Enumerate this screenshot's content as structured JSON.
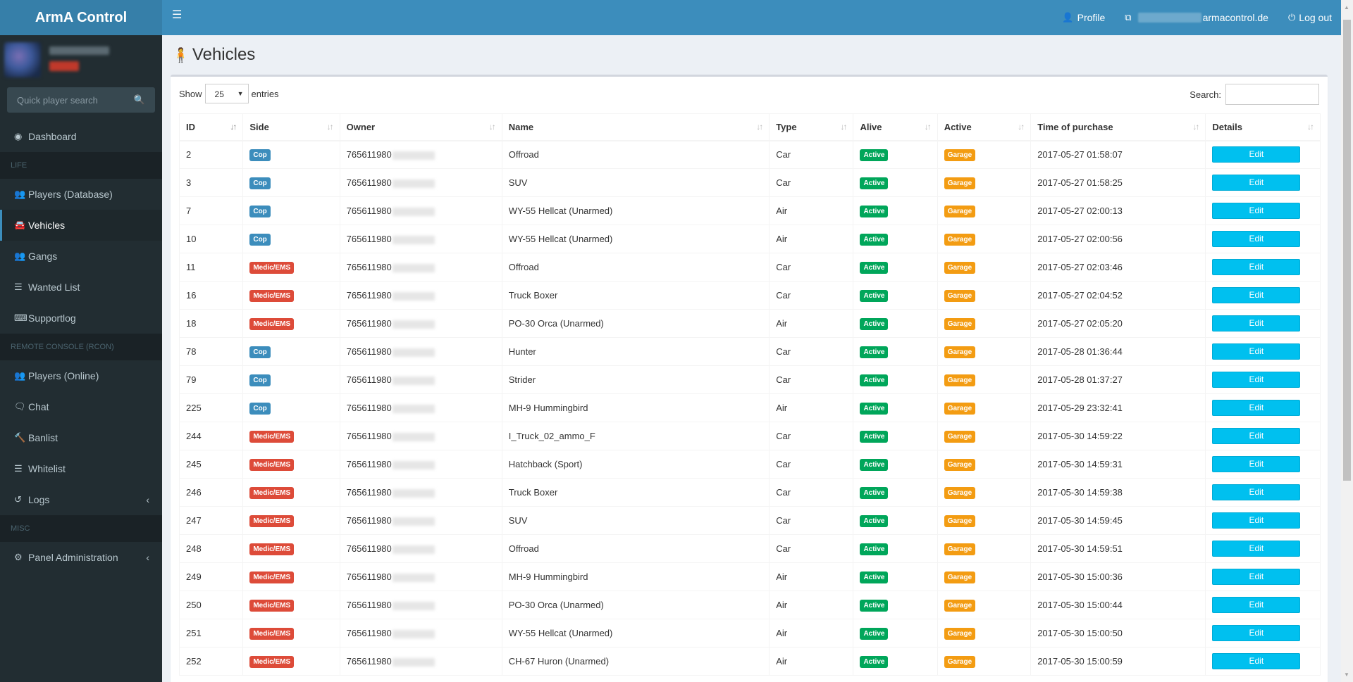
{
  "app": {
    "title": "ArmA Control"
  },
  "header": {
    "profile_label": "Profile",
    "server_suffix": "armacontrol.de",
    "logout_label": "Log out"
  },
  "sidebar": {
    "search_placeholder": "Quick player search",
    "dashboard": "Dashboard",
    "sections": {
      "life": "LIFE",
      "rcon": "REMOTE CONSOLE (RCON)",
      "misc": "MISC"
    },
    "life_items": [
      "Players (Database)",
      "Vehicles",
      "Gangs",
      "Wanted List",
      "Supportlog"
    ],
    "rcon_items": [
      "Players (Online)",
      "Chat",
      "Banlist",
      "Whitelist",
      "Logs"
    ],
    "misc_items": [
      "Panel Administration"
    ]
  },
  "page": {
    "title": "Vehicles",
    "show_label": "Show",
    "entries_label": "entries",
    "entries_value": "25",
    "search_label": "Search:"
  },
  "table": {
    "columns": [
      "ID",
      "Side",
      "Owner",
      "Name",
      "Type",
      "Alive",
      "Active",
      "Time of purchase",
      "Details"
    ],
    "edit_label": "Edit",
    "rows": [
      {
        "id": "2",
        "side": "Cop",
        "owner": "765611980",
        "name": "Offroad",
        "type": "Car",
        "alive": "Active",
        "active": "Garage",
        "time": "2017-05-27 01:58:07"
      },
      {
        "id": "3",
        "side": "Cop",
        "owner": "765611980",
        "name": "SUV",
        "type": "Car",
        "alive": "Active",
        "active": "Garage",
        "time": "2017-05-27 01:58:25"
      },
      {
        "id": "7",
        "side": "Cop",
        "owner": "765611980",
        "name": "WY-55 Hellcat (Unarmed)",
        "type": "Air",
        "alive": "Active",
        "active": "Garage",
        "time": "2017-05-27 02:00:13"
      },
      {
        "id": "10",
        "side": "Cop",
        "owner": "765611980",
        "name": "WY-55 Hellcat (Unarmed)",
        "type": "Air",
        "alive": "Active",
        "active": "Garage",
        "time": "2017-05-27 02:00:56"
      },
      {
        "id": "11",
        "side": "Medic/EMS",
        "owner": "765611980",
        "name": "Offroad",
        "type": "Car",
        "alive": "Active",
        "active": "Garage",
        "time": "2017-05-27 02:03:46"
      },
      {
        "id": "16",
        "side": "Medic/EMS",
        "owner": "765611980",
        "name": "Truck Boxer",
        "type": "Car",
        "alive": "Active",
        "active": "Garage",
        "time": "2017-05-27 02:04:52"
      },
      {
        "id": "18",
        "side": "Medic/EMS",
        "owner": "765611980",
        "name": "PO-30 Orca (Unarmed)",
        "type": "Air",
        "alive": "Active",
        "active": "Garage",
        "time": "2017-05-27 02:05:20"
      },
      {
        "id": "78",
        "side": "Cop",
        "owner": "765611980",
        "name": "Hunter",
        "type": "Car",
        "alive": "Active",
        "active": "Garage",
        "time": "2017-05-28 01:36:44"
      },
      {
        "id": "79",
        "side": "Cop",
        "owner": "765611980",
        "name": "Strider",
        "type": "Car",
        "alive": "Active",
        "active": "Garage",
        "time": "2017-05-28 01:37:27"
      },
      {
        "id": "225",
        "side": "Cop",
        "owner": "765611980",
        "name": "MH-9 Hummingbird",
        "type": "Air",
        "alive": "Active",
        "active": "Garage",
        "time": "2017-05-29 23:32:41"
      },
      {
        "id": "244",
        "side": "Medic/EMS",
        "owner": "765611980",
        "name": "I_Truck_02_ammo_F",
        "type": "Car",
        "alive": "Active",
        "active": "Garage",
        "time": "2017-05-30 14:59:22"
      },
      {
        "id": "245",
        "side": "Medic/EMS",
        "owner": "765611980",
        "name": "Hatchback (Sport)",
        "type": "Car",
        "alive": "Active",
        "active": "Garage",
        "time": "2017-05-30 14:59:31"
      },
      {
        "id": "246",
        "side": "Medic/EMS",
        "owner": "765611980",
        "name": "Truck Boxer",
        "type": "Car",
        "alive": "Active",
        "active": "Garage",
        "time": "2017-05-30 14:59:38"
      },
      {
        "id": "247",
        "side": "Medic/EMS",
        "owner": "765611980",
        "name": "SUV",
        "type": "Car",
        "alive": "Active",
        "active": "Garage",
        "time": "2017-05-30 14:59:45"
      },
      {
        "id": "248",
        "side": "Medic/EMS",
        "owner": "765611980",
        "name": "Offroad",
        "type": "Car",
        "alive": "Active",
        "active": "Garage",
        "time": "2017-05-30 14:59:51"
      },
      {
        "id": "249",
        "side": "Medic/EMS",
        "owner": "765611980",
        "name": "MH-9 Hummingbird",
        "type": "Air",
        "alive": "Active",
        "active": "Garage",
        "time": "2017-05-30 15:00:36"
      },
      {
        "id": "250",
        "side": "Medic/EMS",
        "owner": "765611980",
        "name": "PO-30 Orca (Unarmed)",
        "type": "Air",
        "alive": "Active",
        "active": "Garage",
        "time": "2017-05-30 15:00:44"
      },
      {
        "id": "251",
        "side": "Medic/EMS",
        "owner": "765611980",
        "name": "WY-55 Hellcat (Unarmed)",
        "type": "Air",
        "alive": "Active",
        "active": "Garage",
        "time": "2017-05-30 15:00:50"
      },
      {
        "id": "252",
        "side": "Medic/EMS",
        "owner": "765611980",
        "name": "CH-67 Huron (Unarmed)",
        "type": "Air",
        "alive": "Active",
        "active": "Garage",
        "time": "2017-05-30 15:00:59"
      }
    ]
  },
  "colors": {
    "header": "#3c8dbc",
    "sidebar": "#222d32",
    "cop": "#3c8dbc",
    "medic": "#dd4b39",
    "active": "#00a65a",
    "garage": "#f39c12",
    "edit": "#00c0ef"
  }
}
